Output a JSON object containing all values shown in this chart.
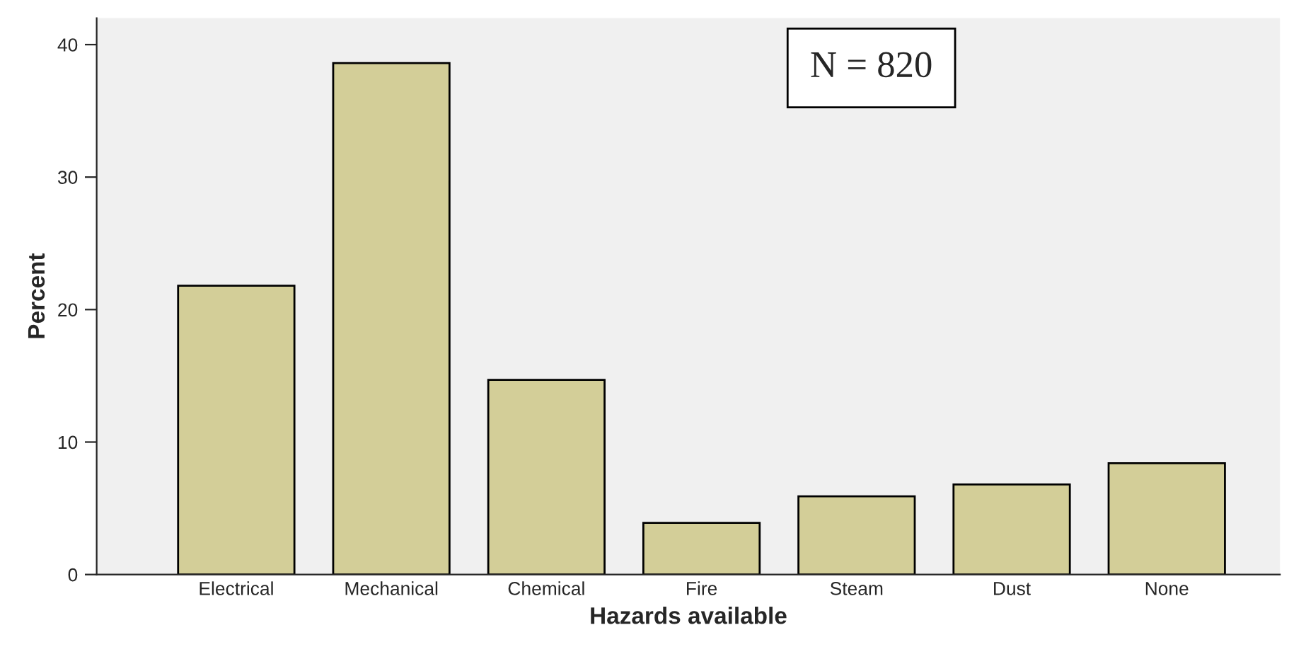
{
  "chart_data": {
    "type": "bar",
    "xlabel": "Hazards available",
    "ylabel": "Percent",
    "categories": [
      "Electrical",
      "Mechanical",
      "Chemical",
      "Fire",
      "Steam",
      "Dust",
      "None"
    ],
    "values": [
      21.8,
      38.6,
      14.7,
      3.9,
      5.9,
      6.8,
      8.4
    ],
    "color": "#d3ce98",
    "ylim": [
      0,
      42
    ],
    "yticks": [
      0,
      10,
      20,
      30,
      40
    ],
    "grid": false,
    "legend": false,
    "annotations": [
      "N = 820"
    ]
  }
}
